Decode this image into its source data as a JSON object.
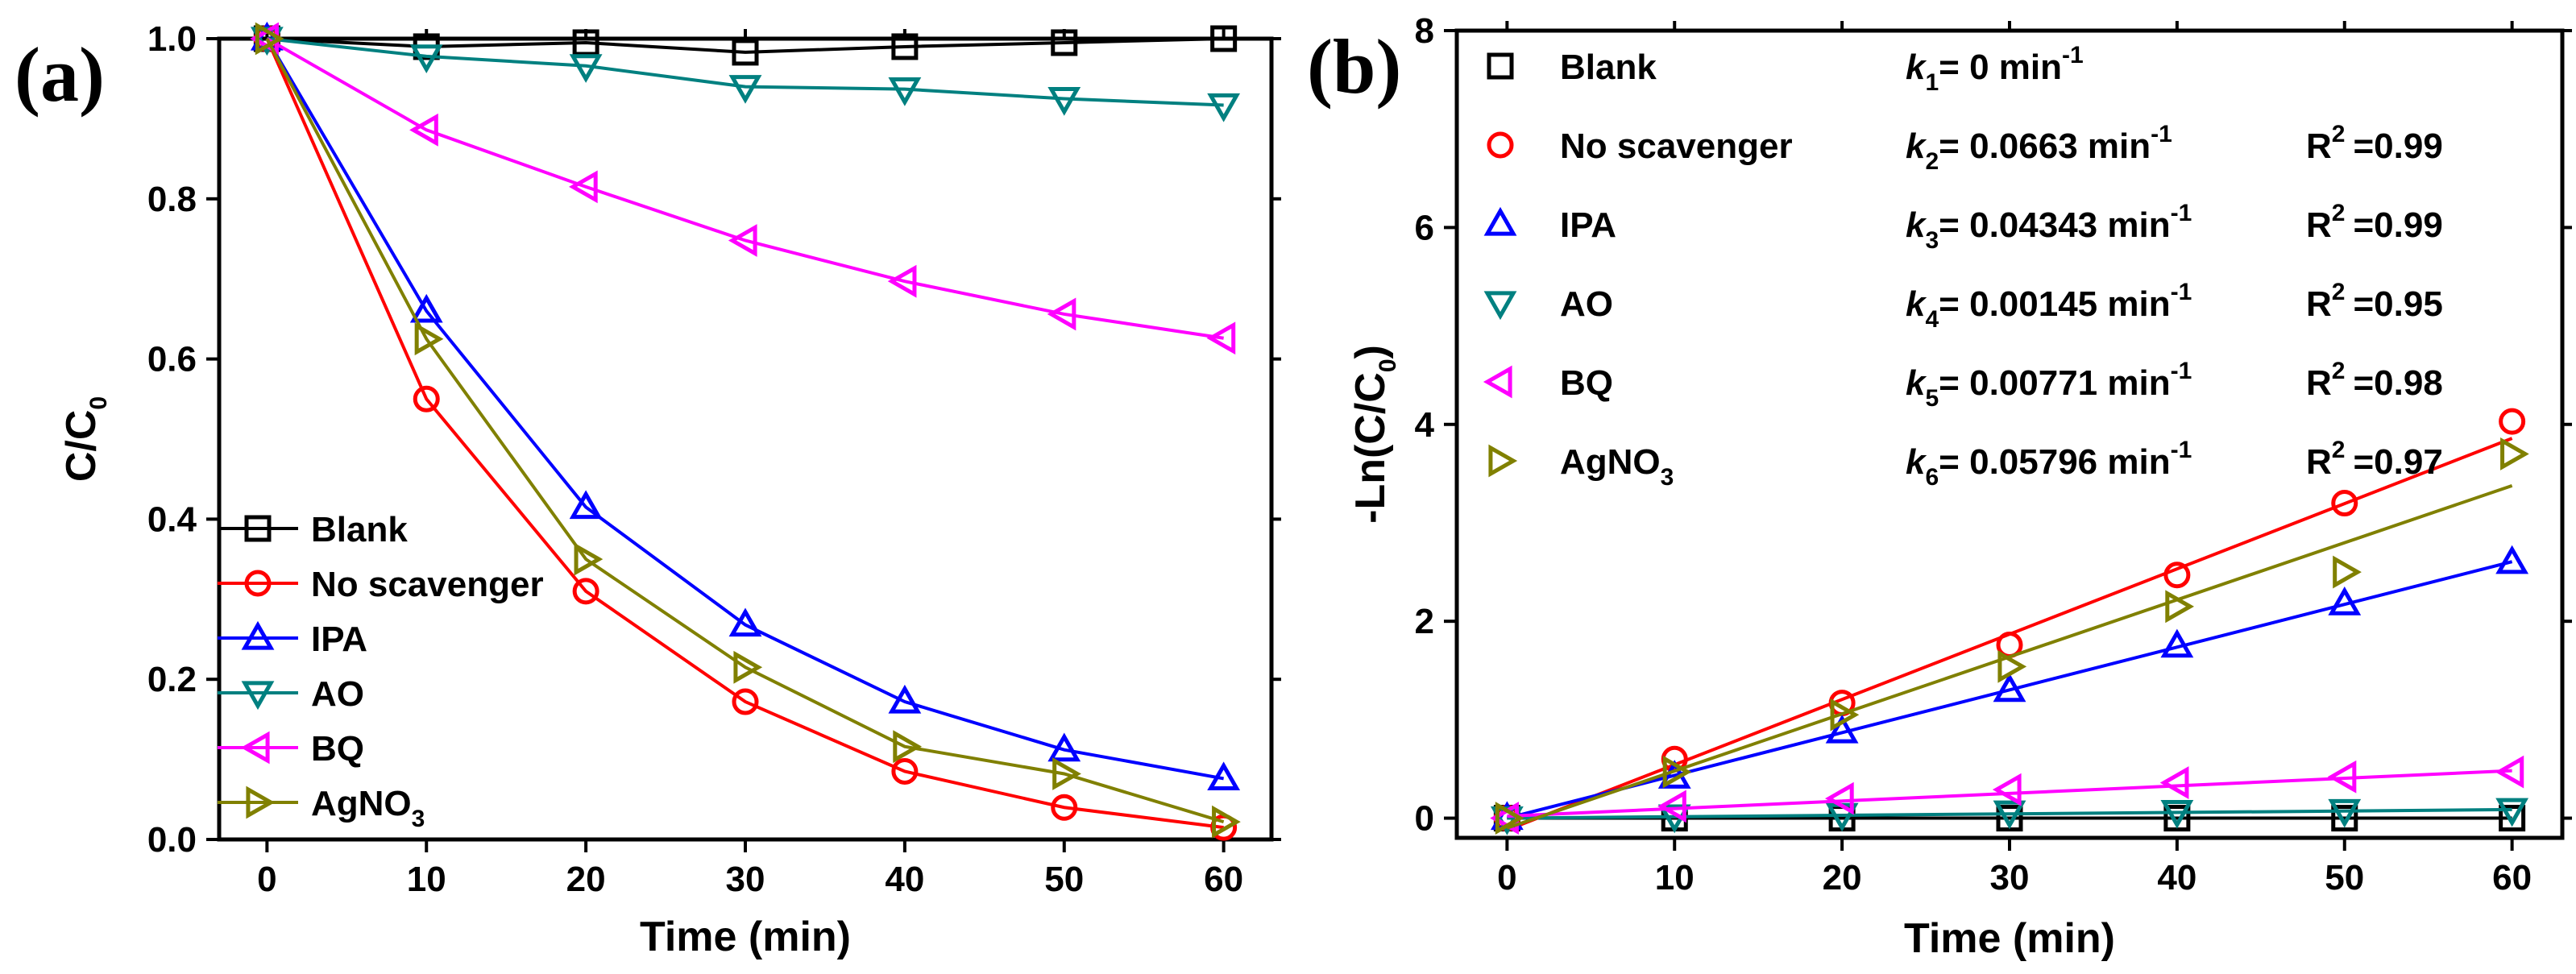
{
  "chart_data": [
    {
      "type": "line",
      "panel_label": "(a)",
      "xlabel": "Time (min)",
      "ylabel": "C/C",
      "ylabel_sub": "0",
      "xlim": [
        -3,
        63
      ],
      "ylim": [
        0,
        1.0
      ],
      "xticks": [
        0,
        10,
        20,
        30,
        40,
        50,
        60
      ],
      "yticks": [
        0.0,
        0.2,
        0.4,
        0.6,
        0.8,
        1.0
      ],
      "ytick_labels": [
        "0.0",
        "0.2",
        "0.4",
        "0.6",
        "0.8",
        "1.0"
      ],
      "legend_position": "bottom-left",
      "x": [
        0,
        10,
        20,
        30,
        40,
        50,
        60
      ],
      "series": [
        {
          "name": "Blank",
          "name_sub": "",
          "color": "#000000",
          "marker": "square",
          "values": [
            1.0,
            0.99,
            0.995,
            0.983,
            0.99,
            0.995,
            1.0
          ]
        },
        {
          "name": "No scavenger",
          "name_sub": "",
          "color": "#ff0000",
          "marker": "circle",
          "values": [
            1.0,
            0.55,
            0.31,
            0.172,
            0.085,
            0.04,
            0.015
          ]
        },
        {
          "name": "IPA",
          "name_sub": "",
          "color": "#0000ff",
          "marker": "triangle-up",
          "values": [
            1.0,
            0.66,
            0.415,
            0.268,
            0.172,
            0.112,
            0.076
          ]
        },
        {
          "name": "AO",
          "name_sub": "",
          "color": "#008080",
          "marker": "triangle-down",
          "values": [
            1.0,
            0.978,
            0.966,
            0.94,
            0.937,
            0.925,
            0.917
          ]
        },
        {
          "name": "BQ",
          "name_sub": "",
          "color": "#ff00ff",
          "marker": "triangle-left",
          "values": [
            1.0,
            0.886,
            0.815,
            0.748,
            0.697,
            0.656,
            0.626
          ]
        },
        {
          "name": "AgNO",
          "name_sub": "3",
          "color": "#808000",
          "marker": "triangle-right",
          "values": [
            1.0,
            0.625,
            0.35,
            0.215,
            0.116,
            0.082,
            0.022
          ]
        }
      ]
    },
    {
      "type": "scatter",
      "panel_label": "(b)",
      "xlabel": "Time (min)",
      "ylabel": "-Ln(C/C",
      "ylabel_sub": "0",
      "ylabel_close": ")",
      "xlim": [
        -3,
        63
      ],
      "ylim": [
        -0.2,
        8
      ],
      "xticks": [
        0,
        10,
        20,
        30,
        40,
        50,
        60
      ],
      "yticks": [
        0,
        2,
        4,
        6,
        8
      ],
      "ytick_labels": [
        "0",
        "2",
        "4",
        "6",
        "8"
      ],
      "legend_position": "top-left",
      "x": [
        0,
        10,
        20,
        30,
        40,
        50,
        60
      ],
      "series": [
        {
          "name": "Blank",
          "name_sub": "",
          "color": "#000000",
          "marker": "square",
          "values": [
            0,
            0.0,
            0.0,
            0.0,
            0.0,
            0.0,
            0.0
          ],
          "fit_slope": 0.0,
          "fit_intercept": 0.0,
          "k_sub": "1",
          "k_value": "= 0 min",
          "k_exp": "-1",
          "r2_value": ""
        },
        {
          "name": "No scavenger",
          "name_sub": "",
          "color": "#ff0000",
          "marker": "circle",
          "values": [
            0,
            0.6,
            1.17,
            1.76,
            2.47,
            3.2,
            4.03
          ],
          "fit_slope": 0.0663,
          "fit_intercept": -0.12,
          "k_sub": "2",
          "k_value": "= 0.0663 min",
          "k_exp": "-1",
          "r2_value": "=0.99"
        },
        {
          "name": "IPA",
          "name_sub": "",
          "color": "#0000ff",
          "marker": "triangle-up",
          "values": [
            0,
            0.42,
            0.88,
            1.3,
            1.75,
            2.18,
            2.6
          ],
          "fit_slope": 0.04343,
          "fit_intercept": 0.0,
          "k_sub": "3",
          "k_value": "= 0.04343 min",
          "k_exp": "-1",
          "r2_value": "=0.99"
        },
        {
          "name": "AO",
          "name_sub": "",
          "color": "#008080",
          "marker": "triangle-down",
          "values": [
            0,
            0.02,
            0.035,
            0.06,
            0.065,
            0.075,
            0.085
          ],
          "fit_slope": 0.00145,
          "fit_intercept": 0.0,
          "k_sub": "4",
          "k_value": "= 0.00145 min",
          "k_exp": "-1",
          "r2_value": "=0.95"
        },
        {
          "name": "BQ",
          "name_sub": "",
          "color": "#ff00ff",
          "marker": "triangle-left",
          "values": [
            0,
            0.12,
            0.2,
            0.29,
            0.36,
            0.42,
            0.47
          ],
          "fit_slope": 0.00771,
          "fit_intercept": 0.02,
          "k_sub": "5",
          "k_value": "= 0.00771 min",
          "k_exp": "-1",
          "r2_value": "=0.98"
        },
        {
          "name": "AgNO",
          "name_sub": "3",
          "color": "#808000",
          "marker": "triangle-right",
          "values": [
            0,
            0.47,
            1.05,
            1.54,
            2.15,
            2.5,
            3.7
          ],
          "fit_slope": 0.05796,
          "fit_intercept": -0.1,
          "k_sub": "6",
          "k_value": "= 0.05796 min",
          "k_exp": "-1",
          "r2_value": "=0.97"
        }
      ]
    }
  ]
}
